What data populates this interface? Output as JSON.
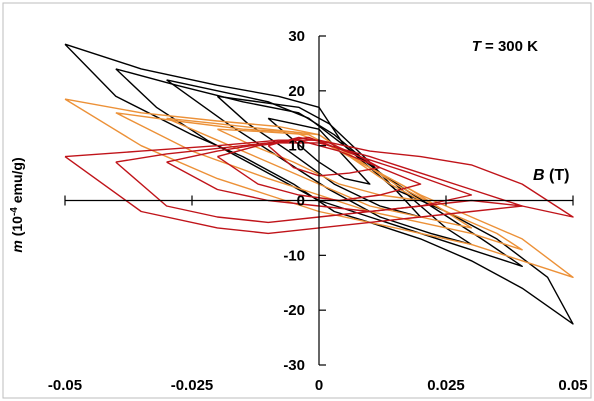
{
  "chart_data": {
    "type": "line",
    "annotation": {
      "italic_part": "T",
      "rest": " = 300 K"
    },
    "xlabel": {
      "italic_part": "B",
      "rest": " (T)"
    },
    "ylabel": {
      "italic_part": "m",
      "rest_pre": " (10",
      "sup": "-4",
      "rest_post": " emu/g)"
    },
    "xlim": [
      -0.05,
      0.05
    ],
    "ylim": [
      -30,
      30
    ],
    "x_ticks": [
      -0.05,
      -0.025,
      0,
      0.025,
      0.05
    ],
    "x_tick_labels": [
      "-0.05",
      "-0.025",
      "0",
      "0.025",
      "0.05"
    ],
    "y_ticks": [
      -30,
      -20,
      -10,
      0,
      10,
      20,
      30
    ],
    "y_tick_labels": [
      "-30",
      "-20",
      "-10",
      "0",
      "10",
      "20",
      "30"
    ],
    "grid": false,
    "legend": "none",
    "series": [
      {
        "color": "#000000",
        "loops": [
          {
            "upper": [
              [
                -0.05,
                28.5
              ],
              [
                -0.035,
                24
              ],
              [
                -0.02,
                21
              ],
              [
                -0.008,
                19
              ],
              [
                0,
                17
              ],
              [
                0.005,
                10
              ],
              [
                0.015,
                2
              ],
              [
                0.025,
                -2
              ],
              [
                0.035,
                -7
              ],
              [
                0.045,
                -14
              ],
              [
                0.05,
                -22.5
              ]
            ],
            "lower": [
              [
                0.05,
                -22.5
              ],
              [
                0.04,
                -16
              ],
              [
                0.03,
                -11
              ],
              [
                0.02,
                -7
              ],
              [
                0.01,
                -4
              ],
              [
                0.003,
                -2
              ],
              [
                -0.005,
                3
              ],
              [
                -0.015,
                8
              ],
              [
                -0.025,
                12
              ],
              [
                -0.04,
                19
              ],
              [
                -0.05,
                28.5
              ]
            ]
          },
          {
            "upper": [
              [
                -0.04,
                24
              ],
              [
                -0.028,
                21
              ],
              [
                -0.015,
                18
              ],
              [
                -0.004,
                16
              ],
              [
                0.003,
                12
              ],
              [
                0.012,
                5
              ],
              [
                0.022,
                -1
              ],
              [
                0.032,
                -7
              ],
              [
                0.04,
                -12
              ]
            ],
            "lower": [
              [
                0.04,
                -12
              ],
              [
                0.03,
                -9
              ],
              [
                0.02,
                -6
              ],
              [
                0.01,
                -3
              ],
              [
                0,
                0
              ],
              [
                -0.01,
                5
              ],
              [
                -0.022,
                11
              ],
              [
                -0.032,
                17
              ],
              [
                -0.04,
                24
              ]
            ]
          },
          {
            "upper": [
              [
                -0.03,
                22
              ],
              [
                -0.02,
                20
              ],
              [
                -0.01,
                18
              ],
              [
                -0.002,
                15
              ],
              [
                0.005,
                10
              ],
              [
                0.015,
                3
              ],
              [
                0.025,
                -5
              ],
              [
                0.03,
                -8
              ]
            ],
            "lower": [
              [
                0.03,
                -8
              ],
              [
                0.022,
                -6
              ],
              [
                0.012,
                -3
              ],
              [
                0.002,
                2
              ],
              [
                -0.008,
                8
              ],
              [
                -0.018,
                14
              ],
              [
                -0.03,
                22
              ]
            ]
          },
          {
            "upper": [
              [
                -0.02,
                19
              ],
              [
                -0.012,
                18
              ],
              [
                -0.004,
                17
              ],
              [
                0.002,
                14
              ],
              [
                0.01,
                7
              ],
              [
                0.02,
                -3
              ]
            ],
            "lower": [
              [
                0.02,
                -3
              ],
              [
                0.012,
                -1
              ],
              [
                0.003,
                3
              ],
              [
                -0.006,
                9
              ],
              [
                -0.014,
                14
              ],
              [
                -0.02,
                19
              ]
            ]
          },
          {
            "upper": [
              [
                -0.01,
                15
              ],
              [
                -0.005,
                14
              ],
              [
                0,
                13
              ],
              [
                0.005,
                8
              ],
              [
                0.01,
                3
              ]
            ],
            "lower": [
              [
                0.01,
                3
              ],
              [
                0.005,
                4
              ],
              [
                0,
                7
              ],
              [
                -0.005,
                11
              ],
              [
                -0.01,
                15
              ]
            ]
          }
        ]
      },
      {
        "color": "#ec9138",
        "loops": [
          {
            "upper": [
              [
                -0.05,
                18.5
              ],
              [
                -0.035,
                16
              ],
              [
                -0.02,
                14.5
              ],
              [
                -0.008,
                13.5
              ],
              [
                0,
                12
              ],
              [
                0.01,
                6
              ],
              [
                0.02,
                1
              ],
              [
                0.03,
                -3
              ],
              [
                0.04,
                -7
              ],
              [
                0.05,
                -14
              ]
            ],
            "lower": [
              [
                0.05,
                -14
              ],
              [
                0.04,
                -11
              ],
              [
                0.03,
                -8
              ],
              [
                0.02,
                -6
              ],
              [
                0.01,
                -4
              ],
              [
                0,
                -2
              ],
              [
                -0.01,
                1
              ],
              [
                -0.02,
                4
              ],
              [
                -0.035,
                10
              ],
              [
                -0.05,
                18.5
              ]
            ]
          },
          {
            "upper": [
              [
                -0.04,
                16
              ],
              [
                -0.028,
                14.5
              ],
              [
                -0.015,
                13
              ],
              [
                -0.005,
                12.5
              ],
              [
                0.005,
                9
              ],
              [
                0.015,
                3
              ],
              [
                0.025,
                -2
              ],
              [
                0.035,
                -6
              ],
              [
                0.04,
                -9
              ]
            ],
            "lower": [
              [
                0.04,
                -9
              ],
              [
                0.03,
                -6
              ],
              [
                0.02,
                -4
              ],
              [
                0.01,
                -2
              ],
              [
                0,
                1
              ],
              [
                -0.01,
                4
              ],
              [
                -0.025,
                9
              ],
              [
                -0.04,
                16
              ]
            ]
          },
          {
            "upper": [
              [
                -0.03,
                15
              ],
              [
                -0.02,
                14
              ],
              [
                -0.01,
                13
              ],
              [
                0,
                12
              ],
              [
                0.008,
                7
              ],
              [
                0.018,
                2
              ],
              [
                0.03,
                -5
              ]
            ],
            "lower": [
              [
                0.03,
                -5
              ],
              [
                0.02,
                -3
              ],
              [
                0.01,
                -1
              ],
              [
                0,
                3
              ],
              [
                -0.01,
                7
              ],
              [
                -0.02,
                11
              ],
              [
                -0.03,
                15
              ]
            ]
          },
          {
            "upper": [
              [
                -0.02,
                13
              ],
              [
                -0.01,
                12.5
              ],
              [
                -0.002,
                12
              ],
              [
                0.006,
                8
              ],
              [
                0.014,
                3
              ],
              [
                0.02,
                0
              ]
            ],
            "lower": [
              [
                0.02,
                0
              ],
              [
                0.012,
                1
              ],
              [
                0.004,
                3
              ],
              [
                -0.005,
                7
              ],
              [
                -0.013,
                10
              ],
              [
                -0.02,
                13
              ]
            ]
          }
        ]
      },
      {
        "color": "#c0141a",
        "loops": [
          {
            "upper": [
              [
                -0.05,
                8
              ],
              [
                -0.035,
                9
              ],
              [
                -0.02,
                10
              ],
              [
                -0.008,
                11
              ],
              [
                0,
                11
              ],
              [
                0.01,
                9
              ],
              [
                0.02,
                8
              ],
              [
                0.03,
                6.5
              ],
              [
                0.04,
                3
              ],
              [
                0.05,
                -3
              ]
            ],
            "lower": [
              [
                0.05,
                -3
              ],
              [
                0.04,
                -1
              ],
              [
                0.03,
                -2
              ],
              [
                0.02,
                -3
              ],
              [
                0.01,
                -4
              ],
              [
                0,
                -5
              ],
              [
                -0.01,
                -6
              ],
              [
                -0.02,
                -5
              ],
              [
                -0.035,
                -2
              ],
              [
                -0.05,
                8
              ]
            ]
          },
          {
            "upper": [
              [
                -0.04,
                7
              ],
              [
                -0.03,
                8.5
              ],
              [
                -0.02,
                9.5
              ],
              [
                -0.01,
                10.5
              ],
              [
                0,
                10.5
              ],
              [
                0.01,
                8
              ],
              [
                0.02,
                5
              ],
              [
                0.03,
                2
              ],
              [
                0.04,
                -1
              ]
            ],
            "lower": [
              [
                0.04,
                -1
              ],
              [
                0.03,
                0
              ],
              [
                0.02,
                -1
              ],
              [
                0.01,
                -2
              ],
              [
                0,
                -3
              ],
              [
                -0.01,
                -4
              ],
              [
                -0.02,
                -3
              ],
              [
                -0.03,
                -1
              ],
              [
                -0.04,
                7
              ]
            ]
          },
          {
            "upper": [
              [
                -0.03,
                7
              ],
              [
                -0.02,
                9
              ],
              [
                -0.01,
                10.5
              ],
              [
                -0.002,
                11.5
              ],
              [
                0.008,
                8
              ],
              [
                0.018,
                5
              ],
              [
                0.03,
                1
              ]
            ],
            "lower": [
              [
                0.03,
                1
              ],
              [
                0.02,
                -1
              ],
              [
                0.01,
                -2
              ],
              [
                0,
                -1
              ],
              [
                -0.01,
                0
              ],
              [
                -0.02,
                2
              ],
              [
                -0.03,
                7
              ]
            ]
          },
          {
            "upper": [
              [
                -0.02,
                8
              ],
              [
                -0.012,
                10
              ],
              [
                -0.004,
                11
              ],
              [
                0.004,
                9
              ],
              [
                0.012,
                6
              ],
              [
                0.02,
                3
              ]
            ],
            "lower": [
              [
                0.02,
                3
              ],
              [
                0.012,
                1
              ],
              [
                0.004,
                0
              ],
              [
                -0.004,
                1
              ],
              [
                -0.012,
                3
              ],
              [
                -0.02,
                8
              ]
            ]
          },
          {
            "upper": [
              [
                -0.01,
                10
              ],
              [
                -0.004,
                11.5
              ],
              [
                0.002,
                10.5
              ],
              [
                0.008,
                8
              ],
              [
                0.012,
                6
              ]
            ],
            "lower": [
              [
                0.012,
                6
              ],
              [
                0.006,
                5
              ],
              [
                0,
                4.5
              ],
              [
                -0.005,
                6
              ],
              [
                -0.01,
                10
              ]
            ]
          }
        ]
      }
    ]
  }
}
